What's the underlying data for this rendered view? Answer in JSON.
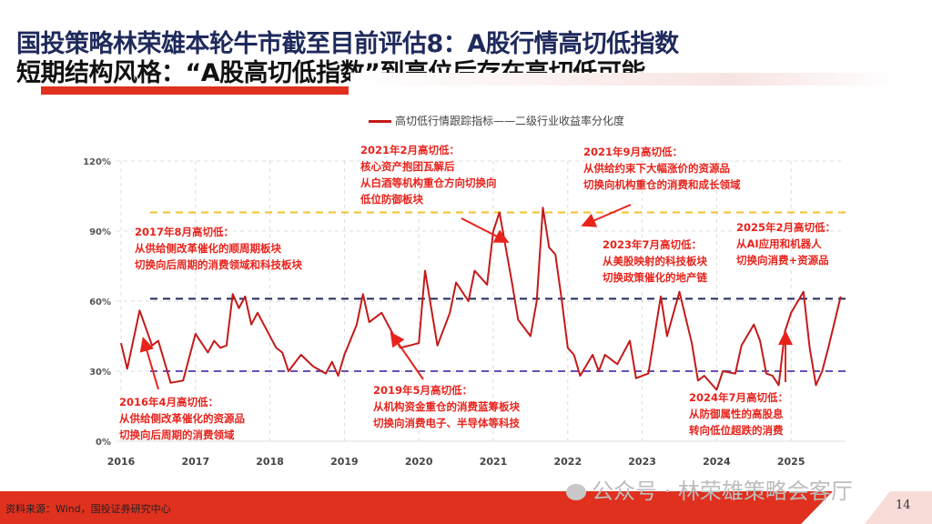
{
  "header": {
    "title_line1": "国投策略林荣雄本轮牛市截至目前评估8：A股行情高切低指数",
    "title_line2": "短期结构风格：“A股高切低指数”到高位后存在高切低可能"
  },
  "footer": {
    "source": "资料来源：Wind，国投证券研究中心",
    "page_number": "14",
    "watermark": "公众号 · 林荣雄策略会客厅"
  },
  "colors": {
    "series": "#c41a1a",
    "upper_line": "#f2c12e",
    "mid_line": "#1f2a5c",
    "lower_line": "#6a4fb3",
    "annotation": "#e8231c",
    "accent": "#e0301e"
  },
  "chart_data": {
    "type": "line",
    "title": "",
    "xlabel": "",
    "ylabel": "",
    "ylim": [
      0,
      120
    ],
    "yticks": [
      "0%",
      "30%",
      "60%",
      "90%",
      "120%"
    ],
    "ytick_values": [
      0,
      30,
      60,
      90,
      120
    ],
    "xticks": [
      "2016",
      "2017",
      "2018",
      "2019",
      "2020",
      "2021",
      "2022",
      "2023",
      "2024",
      "2025"
    ],
    "grid": true,
    "legend_placement": "top",
    "series": [
      {
        "name": "高切低行情跟踪指标——二级行业收益率分化度",
        "x": [
          "2016-01",
          "2016-02",
          "2016-04",
          "2016-06",
          "2016-07",
          "2016-09",
          "2016-11",
          "2017-01",
          "2017-03",
          "2017-04",
          "2017-05",
          "2017-06",
          "2017-07",
          "2017-08",
          "2017-09",
          "2017-10",
          "2017-11",
          "2018-02",
          "2018-03",
          "2018-04",
          "2018-06",
          "2018-08",
          "2018-10",
          "2018-11",
          "2018-12",
          "2019-01",
          "2019-03",
          "2019-04",
          "2019-05",
          "2019-07",
          "2019-10",
          "2020-01",
          "2020-02",
          "2020-04",
          "2020-06",
          "2020-07",
          "2020-09",
          "2020-10",
          "2020-12",
          "2021-01",
          "2021-02",
          "2021-04",
          "2021-05",
          "2021-07",
          "2021-08",
          "2021-09",
          "2021-10",
          "2021-11",
          "2021-12",
          "2022-01",
          "2022-02",
          "2022-03",
          "2022-05",
          "2022-06",
          "2022-07",
          "2022-09",
          "2022-11",
          "2022-12",
          "2023-02",
          "2023-04",
          "2023-05",
          "2023-07",
          "2023-09",
          "2023-10",
          "2023-11",
          "2024-01",
          "2024-02",
          "2024-04",
          "2024-05",
          "2024-07",
          "2024-08",
          "2024-09",
          "2024-10",
          "2024-11",
          "2024-12",
          "2025-01",
          "2025-03",
          "2025-04",
          "2025-05",
          "2025-06",
          "2025-07",
          "2025-09"
        ],
        "values": [
          42,
          31,
          56,
          41,
          43,
          25,
          26,
          46,
          38,
          43,
          40,
          41,
          63,
          57,
          62,
          50,
          55,
          40,
          38,
          30,
          37,
          32,
          29,
          34,
          28,
          37,
          50,
          63,
          51,
          55,
          40,
          42,
          73,
          41,
          55,
          68,
          60,
          73,
          67,
          90,
          98,
          68,
          52,
          45,
          60,
          100,
          83,
          80,
          61,
          40,
          37,
          28,
          37,
          30,
          37,
          33,
          43,
          27,
          29,
          62,
          45,
          64,
          42,
          26,
          28,
          22,
          30,
          29,
          41,
          50,
          43,
          29,
          28,
          24,
          47,
          55,
          64,
          40,
          24,
          30,
          40,
          62
        ]
      }
    ],
    "reference_lines": [
      {
        "value": 98,
        "color": "#f2c12e"
      },
      {
        "value": 61,
        "color": "#1f2a5c"
      },
      {
        "value": 30,
        "color": "#6a4fb3"
      }
    ],
    "annotations": [
      {
        "lines": [
          "2016年4月高切低：",
          "从供给侧改革催化的资源品",
          "切换向后周期的消费领域"
        ]
      },
      {
        "lines": [
          "2017年8月高切低：",
          "从供给侧改革催化的顺周期板块",
          "切换向后周期的消费领域和科技板块"
        ]
      },
      {
        "lines": [
          "2019年5月高切低：",
          "从机构资金重仓的消费蓝筹板块",
          "切换向消费电子、半导体等科技"
        ]
      },
      {
        "lines": [
          "2021年2月高切低：",
          "核心资产抱团瓦解后",
          "从白酒等机构重仓方向切换向",
          "低位防御板块"
        ]
      },
      {
        "lines": [
          "2021年9月高切低：",
          "从供给约束下大幅涨价的资源品",
          "切换向机构重仓的消费和成长领域"
        ]
      },
      {
        "lines": [
          "2023年7月高切低：",
          "从美股映射的科技板块",
          "切换政策催化的地产链"
        ]
      },
      {
        "lines": [
          "2024年7月高切低：",
          "从防御属性的高股息",
          "转向低位超跌的消费"
        ]
      },
      {
        "lines": [
          "2025年2月高切低：",
          "从AI应用和机器人",
          "切换向消费+资源品"
        ]
      }
    ]
  }
}
